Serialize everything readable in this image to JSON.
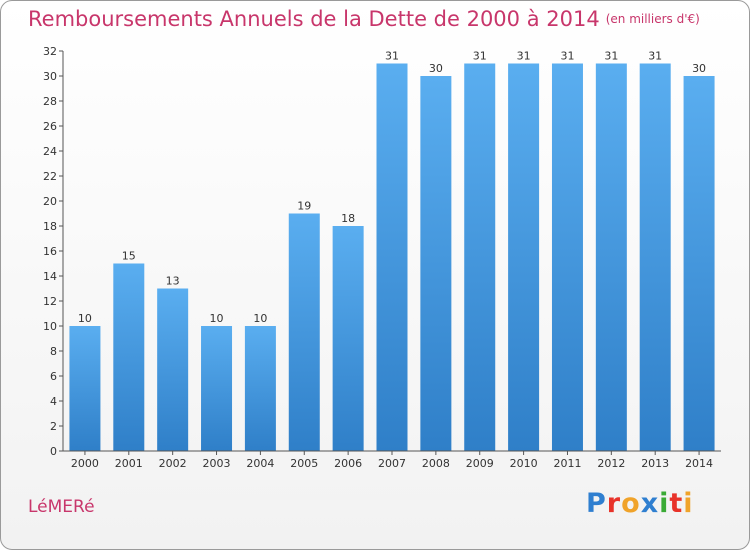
{
  "header": {
    "title": "Remboursements Annuels de la Dette de 2000 à 2014",
    "unit": "(en milliers d'€)"
  },
  "footer": {
    "town": "LéMERé",
    "logo": {
      "letters": [
        "P",
        "r",
        "o",
        "x",
        "i",
        "t",
        "i"
      ]
    }
  },
  "colors": {
    "title": "#c8366b",
    "bar_light": "#5aaef0",
    "bar_dark": "#2f7fc8",
    "logo": [
      "#2f7fd0",
      "#e8332a",
      "#f0a32a",
      "#2f7fd0",
      "#3aaa35",
      "#e8332a",
      "#f0a32a"
    ]
  },
  "chart_data": {
    "type": "bar",
    "title": "Remboursements Annuels de la Dette de 2000 à 2014",
    "xlabel": "",
    "ylabel": "",
    "ylim": [
      0,
      32
    ],
    "ytick_step": 2,
    "grid": false,
    "categories": [
      "2000",
      "2001",
      "2002",
      "2003",
      "2004",
      "2005",
      "2006",
      "2007",
      "2008",
      "2009",
      "2010",
      "2011",
      "2012",
      "2013",
      "2014"
    ],
    "values": [
      10,
      15,
      13,
      10,
      10,
      19,
      18,
      31,
      30,
      31,
      31,
      31,
      31,
      31,
      30
    ]
  }
}
